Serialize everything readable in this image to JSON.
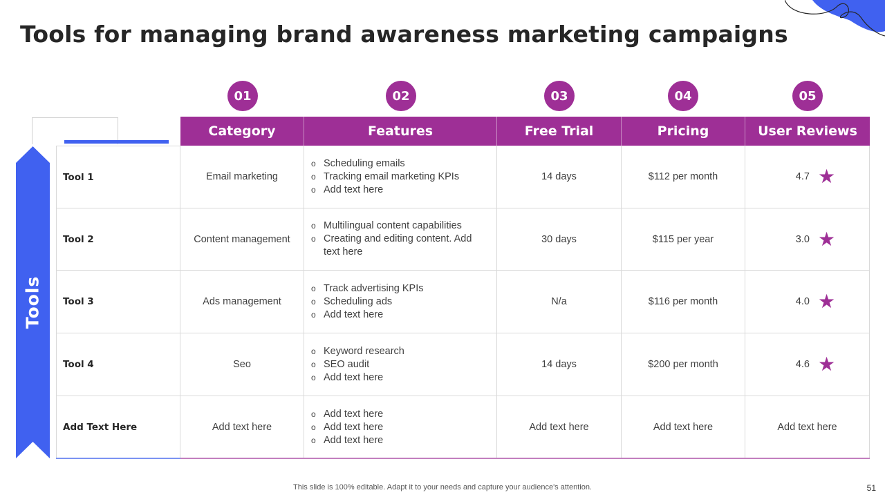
{
  "title": "Tools for managing brand awareness marketing campaigns",
  "colors": {
    "accent_purple": "#9E2F96",
    "accent_blue": "#4061F0"
  },
  "side_label": "Tools",
  "step_numbers": [
    "01",
    "02",
    "03",
    "04",
    "05"
  ],
  "columns": [
    "Category",
    "Features",
    "Free Trial",
    "Pricing",
    "User Reviews"
  ],
  "rows": [
    {
      "name": "Tool 1",
      "category": "Email marketing",
      "features": [
        "Scheduling emails",
        "Tracking email marketing KPIs",
        "Add text here"
      ],
      "free_trial": "14 days",
      "pricing": "$112 per month",
      "review": "4.7"
    },
    {
      "name": "Tool 2",
      "category": "Content management",
      "features": [
        "Multilingual  content capabilities",
        "Creating and editing content. Add text here"
      ],
      "free_trial": "30 days",
      "pricing": "$115 per year",
      "review": "3.0"
    },
    {
      "name": "Tool 3",
      "category": "Ads management",
      "features": [
        "Track advertising KPIs",
        "Scheduling ads",
        "Add text here"
      ],
      "free_trial": "N/a",
      "pricing": "$116 per month",
      "review": "4.0"
    },
    {
      "name": "Tool 4",
      "category": "Seo",
      "features": [
        "Keyword research",
        "SEO audit",
        "Add text here"
      ],
      "free_trial": "14 days",
      "pricing": "$200 per month",
      "review": "4.6"
    },
    {
      "name": "Add Text Here",
      "category": "Add text here",
      "features": [
        "Add text here",
        "Add text here",
        "Add text here"
      ],
      "free_trial": "Add text here",
      "pricing": "Add text here",
      "review": "Add text here"
    }
  ],
  "footer": "This slide is 100% editable. Adapt it to your needs and capture your audience's attention.",
  "page_number": "51"
}
